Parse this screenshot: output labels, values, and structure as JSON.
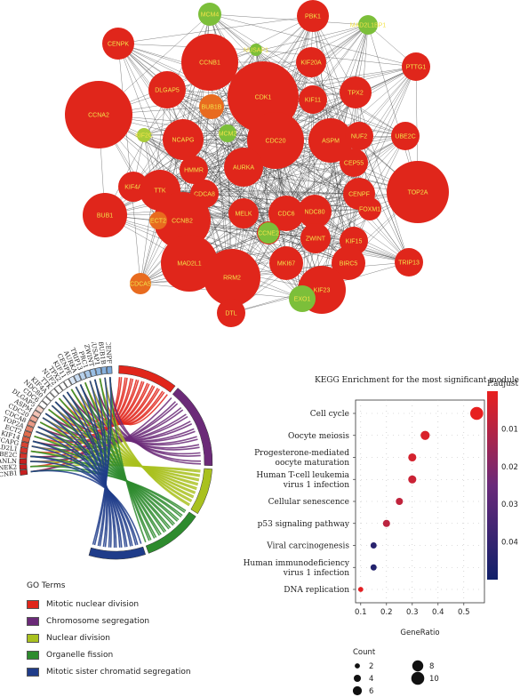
{
  "network": {
    "nodes": [
      {
        "label": "MCM4",
        "color": "#7cbf3a",
        "r": 13
      },
      {
        "label": "PBK1",
        "color": "#e0261b",
        "r": 18
      },
      {
        "label": "MAD2L1BP1",
        "color": "#7cbf3a",
        "r": 11
      },
      {
        "label": "CENPK",
        "color": "#e0261b",
        "r": 18
      },
      {
        "label": "CCNB1",
        "color": "#e0261b",
        "r": 32
      },
      {
        "label": "NUSAP1",
        "color": "#7cbf3a",
        "r": 7
      },
      {
        "label": "KIF20A",
        "color": "#e0261b",
        "r": 17
      },
      {
        "label": "PTTG1",
        "color": "#e0261b",
        "r": 16
      },
      {
        "label": "DLGAP5",
        "color": "#e0261b",
        "r": 21
      },
      {
        "label": "CDK1",
        "color": "#e0261b",
        "r": 40
      },
      {
        "label": "KIF11",
        "color": "#e0261b",
        "r": 16
      },
      {
        "label": "TPX2",
        "color": "#e0261b",
        "r": 18
      },
      {
        "label": "CCNA2",
        "color": "#e0261b",
        "r": 38
      },
      {
        "label": "BUB1B",
        "color": "#e86b1f",
        "r": 14
      },
      {
        "label": "KIF2C",
        "color": "#a9cc3a",
        "r": 8
      },
      {
        "label": "NCAPG",
        "color": "#e0261b",
        "r": 23
      },
      {
        "label": "MCM2",
        "color": "#7cbf3a",
        "r": 10
      },
      {
        "label": "CDC20",
        "color": "#e0261b",
        "r": 32
      },
      {
        "label": "ASPM",
        "color": "#e0261b",
        "r": 25
      },
      {
        "label": "NUF2",
        "color": "#e0261b",
        "r": 16
      },
      {
        "label": "UBE2C",
        "color": "#e0261b",
        "r": 16
      },
      {
        "label": "KIF4A",
        "color": "#e0261b",
        "r": 17
      },
      {
        "label": "HMMR",
        "color": "#e0261b",
        "r": 16
      },
      {
        "label": "AURKA",
        "color": "#e0261b",
        "r": 22
      },
      {
        "label": "TTK",
        "color": "#e0261b",
        "r": 23
      },
      {
        "label": "CEP55",
        "color": "#e0261b",
        "r": 16
      },
      {
        "label": "CDCA8",
        "color": "#e0261b",
        "r": 16
      },
      {
        "label": "TOP2A",
        "color": "#e0261b",
        "r": 35
      },
      {
        "label": "MELK",
        "color": "#e0261b",
        "r": 17
      },
      {
        "label": "CDC6",
        "color": "#e0261b",
        "r": 20
      },
      {
        "label": "NDC80",
        "color": "#e0261b",
        "r": 19
      },
      {
        "label": "CENPF",
        "color": "#e0261b",
        "r": 18
      },
      {
        "label": "BUB1",
        "color": "#e0261b",
        "r": 25
      },
      {
        "label": "CCNB2",
        "color": "#e0261b",
        "r": 32
      },
      {
        "label": "ZWINT",
        "color": "#e0261b",
        "r": 17
      },
      {
        "label": "KIF15",
        "color": "#e0261b",
        "r": 16
      },
      {
        "label": "PRC1",
        "color": "#e0261b",
        "r": 13
      },
      {
        "label": "MKI67",
        "color": "#e0261b",
        "r": 19
      },
      {
        "label": "BIRC5",
        "color": "#e0261b",
        "r": 19
      },
      {
        "label": "ECT2",
        "color": "#e86b1f",
        "r": 10
      },
      {
        "label": "CCNE2",
        "color": "#7cbf3a",
        "r": 12
      },
      {
        "label": "TRIP13",
        "color": "#e0261b",
        "r": 16
      },
      {
        "label": "MAD2L1",
        "color": "#e0261b",
        "r": 32
      },
      {
        "label": "RRM2",
        "color": "#e0261b",
        "r": 32
      },
      {
        "label": "KIF23",
        "color": "#e0261b",
        "r": 27
      },
      {
        "label": "CDCA5",
        "color": "#e86b1f",
        "r": 12
      },
      {
        "label": "DTL",
        "color": "#e0261b",
        "r": 16
      },
      {
        "label": "EXO1",
        "color": "#7cbf3a",
        "r": 15
      },
      {
        "label": "FOXM1",
        "color": "#e0261b",
        "r": 13
      }
    ]
  },
  "chord": {
    "genes": [
      "CCNB1",
      "NEK2",
      "ANLN",
      "UBE2C",
      "MAD2L1",
      "NCAPG",
      "KIF14",
      "ECT2",
      "TOP2A",
      "CDCA8",
      "CDC20",
      "ASPM",
      "DLGAP5",
      "CDC6",
      "NDC80",
      "KIF4A",
      "TTK",
      "NUF2",
      "TPX2",
      "KIF11",
      "CENPE",
      "AURKA",
      "TRIP13",
      "PRC1",
      "ZWINT",
      "NUSAP1",
      "BUB1B",
      "CENPF"
    ],
    "gene_colors": [
      "#c71f1f",
      "#c71f1f",
      "#c71f1f",
      "#d4332b",
      "#d4332b",
      "#d64533",
      "#dd5a40",
      "#e06c4c",
      "#e4826a",
      "#e99a87",
      "#edaa98",
      "#f1c3b6",
      "#f4d6cd",
      "#ffffff",
      "#ffffff",
      "#ffffff",
      "#ffffff",
      "#ffffff",
      "#ffffff",
      "#ffffff",
      "#dbe8f6",
      "#c7dbf1",
      "#b8d2ec",
      "#a9c8e8",
      "#9abfe4",
      "#8fb7e0",
      "#86b0dd",
      "#7aa7d8"
    ],
    "terms": [
      {
        "name": "Mitotic nuclear division",
        "color": "#e0261b"
      },
      {
        "name": "Chromosome segregation",
        "color": "#6b2a78"
      },
      {
        "name": "Nuclear division",
        "color": "#a9c11f"
      },
      {
        "name": "Organelle fission",
        "color": "#2e8b2e"
      },
      {
        "name": "Mitotic sister chromatid segregation",
        "color": "#1f3c8a"
      }
    ],
    "legend_title": "GO Terms"
  },
  "chart_data": {
    "type": "scatter",
    "title": "KEGG Enrichment for the most significant module",
    "xlabel": "GeneRatio",
    "ylabel": "",
    "xlim": [
      0.08,
      0.58
    ],
    "xticks": [
      "0.1",
      "0.2",
      "0.3",
      "0.4",
      "0.5"
    ],
    "terms": [
      {
        "label": [
          "Cell cycle"
        ],
        "x": 0.55,
        "count": 10,
        "padj": 0.0001
      },
      {
        "label": [
          "Oocyte meiosis"
        ],
        "x": 0.35,
        "count": 6,
        "padj": 0.003
      },
      {
        "label": [
          "Progesterone-mediated",
          "oocyte maturation"
        ],
        "x": 0.3,
        "count": 5,
        "padj": 0.004
      },
      {
        "label": [
          "Human T-cell leukemia",
          "virus 1 infection"
        ],
        "x": 0.3,
        "count": 5,
        "padj": 0.006
      },
      {
        "label": [
          "Cellular senescence"
        ],
        "x": 0.25,
        "count": 4,
        "padj": 0.008
      },
      {
        "label": [
          "p53 signaling pathway"
        ],
        "x": 0.2,
        "count": 4,
        "padj": 0.009
      },
      {
        "label": [
          "Viral carcinogenesis"
        ],
        "x": 0.15,
        "count": 3,
        "padj": 0.043
      },
      {
        "label": [
          "Human immunodeficiency",
          "virus 1 infection"
        ],
        "x": 0.15,
        "count": 3,
        "padj": 0.045
      },
      {
        "label": [
          "DNA replication"
        ],
        "x": 0.1,
        "count": 2,
        "padj": 0.001
      }
    ],
    "colorbar": {
      "title": "P.adjust",
      "ticks": [
        "0.01",
        "0.02",
        "0.03",
        "0.04"
      ],
      "range": [
        0.0,
        0.05
      ],
      "low_color": "#e8201f",
      "mid_color": "#6a2a7a",
      "high_color": "#10206a"
    },
    "size_legend": {
      "title": "Count",
      "values": [
        2,
        4,
        6,
        8,
        10
      ]
    }
  }
}
